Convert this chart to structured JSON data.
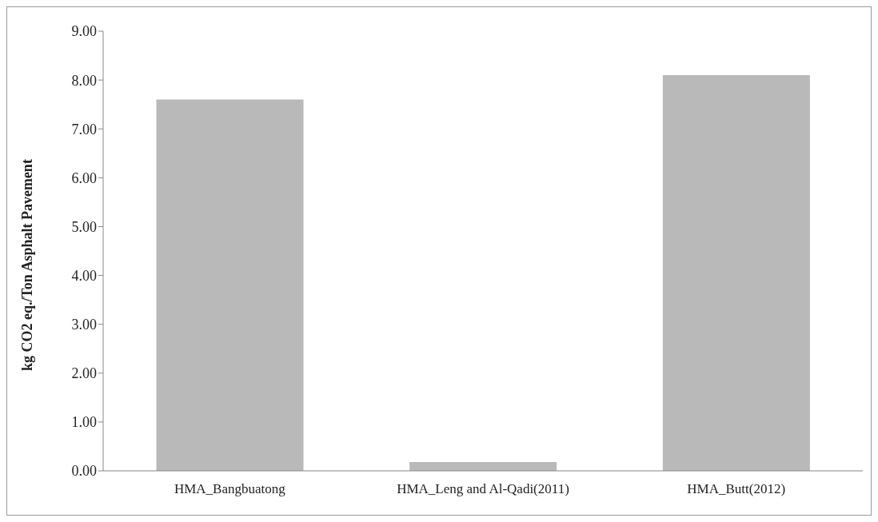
{
  "chart_data": {
    "type": "bar",
    "ylabel": "kg CO2 eq./Ton Asphalt  Pavement",
    "categories": [
      "HMA_Bangbuatong",
      "HMA_Leng and Al-Qadi(2011)",
      "HMA_Butt(2012)"
    ],
    "values": [
      7.6,
      0.18,
      8.1
    ],
    "color": "#b9b9b9",
    "ylim": [
      0,
      9
    ],
    "yticks": [
      {
        "value": 0,
        "label": "0.00"
      },
      {
        "value": 1,
        "label": "1.00"
      },
      {
        "value": 2,
        "label": "2.00"
      },
      {
        "value": 3,
        "label": "3.00"
      },
      {
        "value": 4,
        "label": "4.00"
      },
      {
        "value": 5,
        "label": "5.00"
      },
      {
        "value": 6,
        "label": "6.00"
      },
      {
        "value": 7,
        "label": "7.00"
      },
      {
        "value": 8,
        "label": "8.00"
      },
      {
        "value": 9,
        "label": "9.00"
      }
    ],
    "grid": false
  }
}
